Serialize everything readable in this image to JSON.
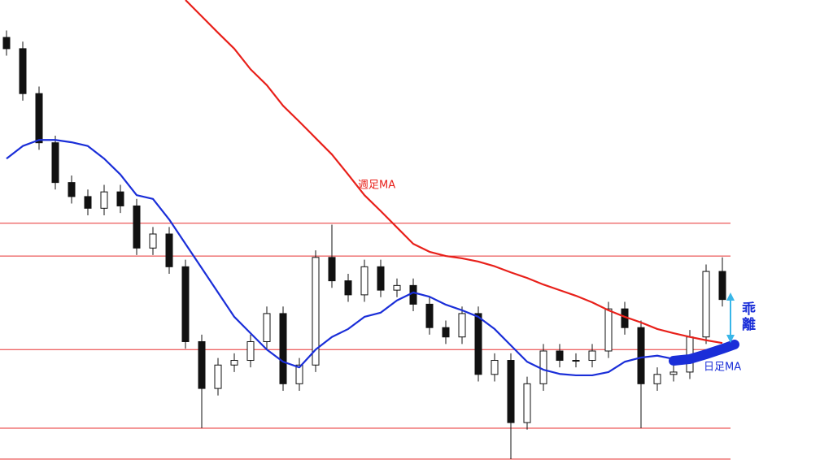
{
  "chart_data": {
    "type": "candlestick",
    "ylim": [
      0,
      100
    ],
    "levels": [
      52.3,
      45.3,
      25.3,
      8.5,
      1.9
    ],
    "level_color": "#e83030",
    "open": [
      92,
      89.6,
      80,
      69.5,
      61,
      58,
      55.5,
      59,
      56,
      47,
      50,
      43,
      27,
      17,
      22,
      23,
      27,
      33,
      18,
      22,
      45,
      40,
      37,
      43,
      38,
      39,
      35,
      30,
      28,
      33,
      20,
      23,
      9.7,
      18,
      25,
      23,
      23,
      25,
      34,
      30,
      18,
      20,
      20.5,
      28,
      42
    ],
    "high": [
      93.5,
      91.1,
      81.5,
      71,
      62.5,
      59.5,
      60.5,
      60.5,
      57.5,
      51.5,
      51.5,
      44.5,
      28.5,
      23.5,
      24.5,
      28.5,
      34.5,
      34.5,
      23.5,
      46.5,
      52,
      41.5,
      44.5,
      44.5,
      40.5,
      40.5,
      36.5,
      31.5,
      34.5,
      34.5,
      24.5,
      24.5,
      19.5,
      26.5,
      26.5,
      24.5,
      26.5,
      35.5,
      35.5,
      31.5,
      21.5,
      22,
      29.5,
      43.5,
      45
    ],
    "low": [
      88.1,
      78.5,
      68,
      59.5,
      56.5,
      54,
      54,
      54.5,
      45.5,
      45.5,
      41.5,
      25.5,
      8.5,
      15.5,
      20.5,
      21.5,
      25.5,
      16.5,
      16.5,
      20.5,
      38.5,
      35.5,
      35.5,
      36.5,
      36.5,
      33.5,
      28.5,
      26.5,
      26.5,
      18.5,
      18.5,
      1.9,
      8.2,
      16.5,
      21.5,
      21.5,
      21.5,
      23.5,
      28.5,
      8.5,
      16.5,
      18.5,
      19,
      26.5,
      34.5
    ],
    "close": [
      89.6,
      80,
      69.5,
      61,
      58,
      55.5,
      59,
      56,
      47,
      50,
      43,
      27,
      17,
      22,
      23,
      27,
      33,
      18,
      22,
      45,
      40,
      37,
      43,
      38,
      39,
      35,
      30,
      28,
      33,
      20,
      23,
      9.7,
      18,
      25,
      23,
      23,
      25,
      34,
      30,
      18,
      20,
      20.5,
      28,
      42,
      36
    ],
    "series": [
      {
        "name": "週足MA",
        "color": "#e8201a",
        "values": [
          null,
          null,
          null,
          null,
          null,
          null,
          null,
          null,
          null,
          null,
          null,
          100,
          96.5,
          93,
          89.6,
          85.2,
          81.8,
          77.4,
          74,
          70.5,
          67,
          62.7,
          58.3,
          54.9,
          51.4,
          47.9,
          46.2,
          45.3,
          44.8,
          44.1,
          43.1,
          41.8,
          40.6,
          39.2,
          38,
          36.8,
          35.4,
          33.7,
          32.3,
          31.1,
          29.7,
          28.8,
          28,
          27.3,
          26.7
        ]
      },
      {
        "name": "日足MA",
        "color": "#1a2ed8",
        "values": [
          66.1,
          68.8,
          70.1,
          70.1,
          69.6,
          68.8,
          66.1,
          62.7,
          58.3,
          57.5,
          53.1,
          47.9,
          42.7,
          37.5,
          32.3,
          28.8,
          25.3,
          22.7,
          21.5,
          25.3,
          28,
          29.7,
          32.3,
          33.2,
          35.8,
          37.5,
          36.6,
          34.9,
          33.7,
          32.3,
          29.7,
          26.2,
          22.7,
          21,
          20.1,
          19.8,
          19.8,
          20.5,
          22.7,
          23.6,
          24,
          23.3,
          23.6,
          24.5,
          26.2
        ]
      }
    ],
    "annotation": "乖離"
  }
}
